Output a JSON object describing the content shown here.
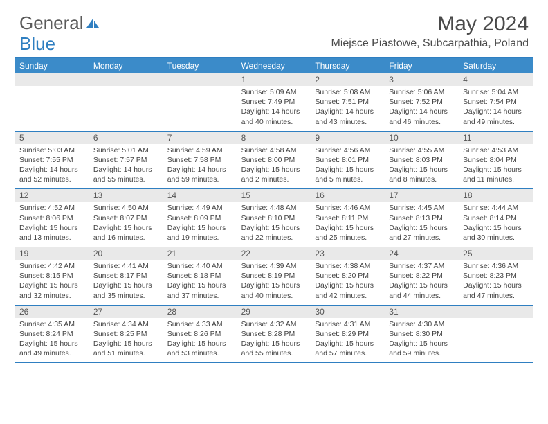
{
  "brand": {
    "part1": "General",
    "part2": "Blue"
  },
  "title": "May 2024",
  "location": "Miejsce Piastowe, Subcarpathia, Poland",
  "day_names": [
    "Sunday",
    "Monday",
    "Tuesday",
    "Wednesday",
    "Thursday",
    "Friday",
    "Saturday"
  ],
  "colors": {
    "header_bar": "#3b8bc9",
    "accent": "#2f7fc1",
    "daynum_bg": "#e9e9e9",
    "text": "#4a4a4a",
    "background": "#ffffff"
  },
  "fonts": {
    "title_size": 30,
    "location_size": 16,
    "dayhead_size": 12,
    "daynum_size": 12,
    "info_size": 10.5
  },
  "weeks": [
    [
      {
        "n": "",
        "sr": "",
        "ss": "",
        "dl": ""
      },
      {
        "n": "",
        "sr": "",
        "ss": "",
        "dl": ""
      },
      {
        "n": "",
        "sr": "",
        "ss": "",
        "dl": ""
      },
      {
        "n": "1",
        "sr": "Sunrise: 5:09 AM",
        "ss": "Sunset: 7:49 PM",
        "dl": "Daylight: 14 hours and 40 minutes."
      },
      {
        "n": "2",
        "sr": "Sunrise: 5:08 AM",
        "ss": "Sunset: 7:51 PM",
        "dl": "Daylight: 14 hours and 43 minutes."
      },
      {
        "n": "3",
        "sr": "Sunrise: 5:06 AM",
        "ss": "Sunset: 7:52 PM",
        "dl": "Daylight: 14 hours and 46 minutes."
      },
      {
        "n": "4",
        "sr": "Sunrise: 5:04 AM",
        "ss": "Sunset: 7:54 PM",
        "dl": "Daylight: 14 hours and 49 minutes."
      }
    ],
    [
      {
        "n": "5",
        "sr": "Sunrise: 5:03 AM",
        "ss": "Sunset: 7:55 PM",
        "dl": "Daylight: 14 hours and 52 minutes."
      },
      {
        "n": "6",
        "sr": "Sunrise: 5:01 AM",
        "ss": "Sunset: 7:57 PM",
        "dl": "Daylight: 14 hours and 55 minutes."
      },
      {
        "n": "7",
        "sr": "Sunrise: 4:59 AM",
        "ss": "Sunset: 7:58 PM",
        "dl": "Daylight: 14 hours and 59 minutes."
      },
      {
        "n": "8",
        "sr": "Sunrise: 4:58 AM",
        "ss": "Sunset: 8:00 PM",
        "dl": "Daylight: 15 hours and 2 minutes."
      },
      {
        "n": "9",
        "sr": "Sunrise: 4:56 AM",
        "ss": "Sunset: 8:01 PM",
        "dl": "Daylight: 15 hours and 5 minutes."
      },
      {
        "n": "10",
        "sr": "Sunrise: 4:55 AM",
        "ss": "Sunset: 8:03 PM",
        "dl": "Daylight: 15 hours and 8 minutes."
      },
      {
        "n": "11",
        "sr": "Sunrise: 4:53 AM",
        "ss": "Sunset: 8:04 PM",
        "dl": "Daylight: 15 hours and 11 minutes."
      }
    ],
    [
      {
        "n": "12",
        "sr": "Sunrise: 4:52 AM",
        "ss": "Sunset: 8:06 PM",
        "dl": "Daylight: 15 hours and 13 minutes."
      },
      {
        "n": "13",
        "sr": "Sunrise: 4:50 AM",
        "ss": "Sunset: 8:07 PM",
        "dl": "Daylight: 15 hours and 16 minutes."
      },
      {
        "n": "14",
        "sr": "Sunrise: 4:49 AM",
        "ss": "Sunset: 8:09 PM",
        "dl": "Daylight: 15 hours and 19 minutes."
      },
      {
        "n": "15",
        "sr": "Sunrise: 4:48 AM",
        "ss": "Sunset: 8:10 PM",
        "dl": "Daylight: 15 hours and 22 minutes."
      },
      {
        "n": "16",
        "sr": "Sunrise: 4:46 AM",
        "ss": "Sunset: 8:11 PM",
        "dl": "Daylight: 15 hours and 25 minutes."
      },
      {
        "n": "17",
        "sr": "Sunrise: 4:45 AM",
        "ss": "Sunset: 8:13 PM",
        "dl": "Daylight: 15 hours and 27 minutes."
      },
      {
        "n": "18",
        "sr": "Sunrise: 4:44 AM",
        "ss": "Sunset: 8:14 PM",
        "dl": "Daylight: 15 hours and 30 minutes."
      }
    ],
    [
      {
        "n": "19",
        "sr": "Sunrise: 4:42 AM",
        "ss": "Sunset: 8:15 PM",
        "dl": "Daylight: 15 hours and 32 minutes."
      },
      {
        "n": "20",
        "sr": "Sunrise: 4:41 AM",
        "ss": "Sunset: 8:17 PM",
        "dl": "Daylight: 15 hours and 35 minutes."
      },
      {
        "n": "21",
        "sr": "Sunrise: 4:40 AM",
        "ss": "Sunset: 8:18 PM",
        "dl": "Daylight: 15 hours and 37 minutes."
      },
      {
        "n": "22",
        "sr": "Sunrise: 4:39 AM",
        "ss": "Sunset: 8:19 PM",
        "dl": "Daylight: 15 hours and 40 minutes."
      },
      {
        "n": "23",
        "sr": "Sunrise: 4:38 AM",
        "ss": "Sunset: 8:20 PM",
        "dl": "Daylight: 15 hours and 42 minutes."
      },
      {
        "n": "24",
        "sr": "Sunrise: 4:37 AM",
        "ss": "Sunset: 8:22 PM",
        "dl": "Daylight: 15 hours and 44 minutes."
      },
      {
        "n": "25",
        "sr": "Sunrise: 4:36 AM",
        "ss": "Sunset: 8:23 PM",
        "dl": "Daylight: 15 hours and 47 minutes."
      }
    ],
    [
      {
        "n": "26",
        "sr": "Sunrise: 4:35 AM",
        "ss": "Sunset: 8:24 PM",
        "dl": "Daylight: 15 hours and 49 minutes."
      },
      {
        "n": "27",
        "sr": "Sunrise: 4:34 AM",
        "ss": "Sunset: 8:25 PM",
        "dl": "Daylight: 15 hours and 51 minutes."
      },
      {
        "n": "28",
        "sr": "Sunrise: 4:33 AM",
        "ss": "Sunset: 8:26 PM",
        "dl": "Daylight: 15 hours and 53 minutes."
      },
      {
        "n": "29",
        "sr": "Sunrise: 4:32 AM",
        "ss": "Sunset: 8:28 PM",
        "dl": "Daylight: 15 hours and 55 minutes."
      },
      {
        "n": "30",
        "sr": "Sunrise: 4:31 AM",
        "ss": "Sunset: 8:29 PM",
        "dl": "Daylight: 15 hours and 57 minutes."
      },
      {
        "n": "31",
        "sr": "Sunrise: 4:30 AM",
        "ss": "Sunset: 8:30 PM",
        "dl": "Daylight: 15 hours and 59 minutes."
      },
      {
        "n": "",
        "sr": "",
        "ss": "",
        "dl": ""
      }
    ]
  ]
}
